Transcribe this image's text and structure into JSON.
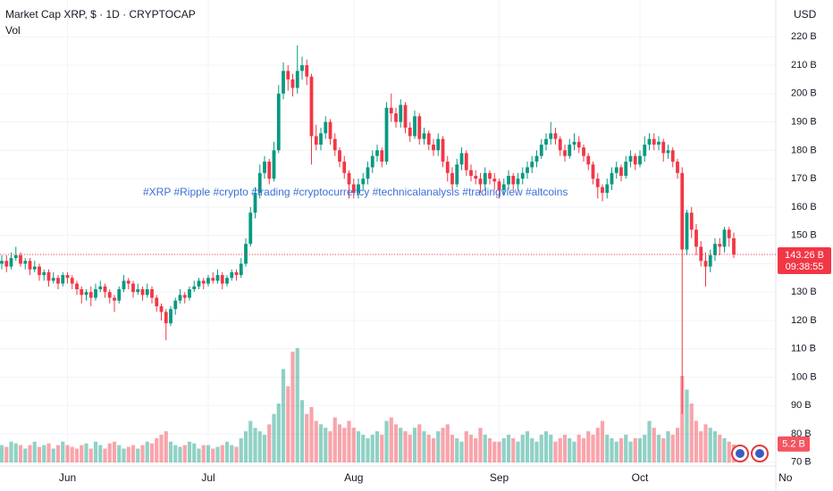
{
  "chart_data": {
    "type": "candlestick",
    "title": "Market Cap XRP, $ · 1D · CRYPTOCAP",
    "volume_label": "Vol",
    "currency": "USD",
    "annotation": "#XRP #Ripple #crypto #trading #cryptocurrency #technicalanalysis #tradingview #altcoins",
    "open": [
      140,
      141,
      139,
      142,
      143,
      140,
      141,
      138,
      139,
      136,
      137,
      134,
      135,
      133,
      136,
      135,
      133,
      131,
      129,
      130,
      128,
      131,
      132,
      130,
      128,
      127,
      131,
      134,
      133,
      130,
      131,
      129,
      131,
      128,
      125,
      123,
      119,
      124,
      127,
      129,
      128,
      131,
      132,
      134,
      133,
      135,
      134,
      136,
      133,
      135,
      137,
      136,
      140,
      147,
      158,
      165,
      172,
      176,
      170,
      180,
      200,
      208,
      205,
      202,
      208,
      210,
      206,
      185,
      182,
      186,
      190,
      184,
      180,
      176,
      172,
      168,
      165,
      168,
      170,
      174,
      178,
      180,
      176,
      195,
      193,
      190,
      196,
      188,
      185,
      192,
      184,
      186,
      182,
      180,
      184,
      176,
      172,
      168,
      175,
      179,
      173,
      171,
      170,
      168,
      172,
      170,
      169,
      166,
      168,
      171,
      168,
      170,
      172,
      174,
      176,
      178,
      182,
      184,
      186,
      184,
      180,
      178,
      182,
      183,
      181,
      178,
      175,
      170,
      167,
      165,
      168,
      172,
      174,
      171,
      176,
      178,
      175,
      178,
      182,
      184,
      182,
      183,
      179,
      180,
      176,
      172,
      145,
      158,
      152,
      146,
      141,
      139,
      143,
      147,
      146,
      152,
      149
    ],
    "high": [
      143,
      143,
      144,
      146,
      144,
      142,
      142,
      141,
      140,
      138,
      138,
      137,
      136,
      137,
      137,
      136,
      134,
      132,
      131,
      132,
      133,
      134,
      133,
      131,
      129,
      132,
      136,
      135,
      134,
      133,
      132,
      133,
      132,
      129,
      126,
      124,
      125,
      128,
      131,
      130,
      132,
      134,
      135,
      135,
      136,
      137,
      138,
      137,
      136,
      138,
      138,
      142,
      149,
      160,
      167,
      175,
      178,
      177,
      183,
      203,
      211,
      210,
      207,
      217,
      213,
      212,
      207,
      189,
      188,
      192,
      191,
      186,
      181,
      178,
      173,
      170,
      170,
      172,
      176,
      180,
      182,
      181,
      197,
      200,
      195,
      198,
      197,
      190,
      194,
      193,
      188,
      187,
      184,
      186,
      185,
      178,
      174,
      177,
      181,
      180,
      175,
      173,
      172,
      174,
      173,
      172,
      170,
      170,
      173,
      172,
      172,
      174,
      176,
      178,
      180,
      184,
      186,
      190,
      188,
      185,
      182,
      184,
      186,
      185,
      182,
      179,
      176,
      172,
      168,
      170,
      174,
      176,
      175,
      178,
      180,
      179,
      180,
      185,
      186,
      186,
      185,
      184,
      182,
      181,
      177,
      174,
      159,
      160,
      154,
      148,
      144,
      145,
      149,
      149,
      153,
      153,
      151
    ],
    "low": [
      138,
      137,
      138,
      141,
      139,
      138,
      136,
      137,
      134,
      134,
      132,
      133,
      131,
      132,
      133,
      131,
      129,
      126,
      127,
      125,
      127,
      130,
      128,
      126,
      123,
      126,
      130,
      131,
      128,
      129,
      127,
      128,
      126,
      123,
      120,
      113,
      118,
      122,
      126,
      126,
      127,
      130,
      131,
      131,
      132,
      133,
      133,
      131,
      132,
      134,
      134,
      135,
      139,
      146,
      156,
      163,
      170,
      168,
      169,
      179,
      198,
      201,
      199,
      200,
      205,
      203,
      175,
      180,
      180,
      184,
      182,
      178,
      174,
      170,
      163,
      163,
      163,
      166,
      168,
      172,
      176,
      174,
      175,
      190,
      188,
      188,
      186,
      183,
      184,
      182,
      182,
      180,
      178,
      178,
      174,
      169,
      166,
      167,
      173,
      171,
      169,
      168,
      165,
      166,
      168,
      166,
      163,
      164,
      166,
      166,
      166,
      168,
      170,
      172,
      174,
      177,
      180,
      182,
      182,
      178,
      176,
      177,
      180,
      179,
      176,
      173,
      168,
      163,
      162,
      163,
      166,
      170,
      169,
      170,
      174,
      173,
      174,
      176,
      180,
      180,
      180,
      176,
      177,
      174,
      170,
      87,
      143,
      149,
      143,
      139,
      132,
      137,
      141,
      143,
      144,
      146,
      142
    ],
    "close": [
      141,
      139,
      142,
      143,
      140,
      141,
      138,
      139,
      136,
      137,
      134,
      135,
      133,
      136,
      135,
      133,
      131,
      129,
      130,
      128,
      131,
      132,
      130,
      128,
      127,
      131,
      134,
      133,
      130,
      131,
      129,
      131,
      128,
      125,
      123,
      119,
      124,
      127,
      129,
      128,
      131,
      132,
      134,
      133,
      135,
      134,
      136,
      133,
      135,
      137,
      136,
      140,
      147,
      158,
      165,
      172,
      176,
      170,
      180,
      200,
      208,
      205,
      202,
      208,
      210,
      206,
      185,
      182,
      186,
      190,
      184,
      180,
      176,
      172,
      168,
      165,
      168,
      170,
      174,
      178,
      180,
      176,
      195,
      193,
      190,
      196,
      188,
      185,
      192,
      184,
      186,
      182,
      180,
      184,
      176,
      172,
      168,
      175,
      179,
      173,
      171,
      170,
      168,
      172,
      170,
      169,
      166,
      168,
      171,
      168,
      170,
      172,
      174,
      176,
      178,
      182,
      184,
      186,
      184,
      180,
      178,
      182,
      183,
      181,
      178,
      175,
      170,
      167,
      165,
      168,
      172,
      174,
      171,
      176,
      178,
      175,
      178,
      182,
      184,
      182,
      183,
      179,
      180,
      176,
      172,
      145,
      158,
      152,
      146,
      141,
      139,
      143,
      147,
      146,
      152,
      149,
      143.26
    ],
    "volume": [
      5,
      4.5,
      6,
      5.5,
      5,
      4,
      5,
      6,
      4.5,
      5,
      5.5,
      4,
      5,
      6,
      5,
      4.5,
      4,
      5,
      5.5,
      4,
      6,
      5,
      4,
      5.5,
      6,
      5,
      4,
      4.5,
      5,
      4,
      5,
      6,
      5.5,
      7,
      8,
      9,
      6,
      5,
      4.5,
      5,
      6,
      5.5,
      4,
      5,
      5,
      4,
      4.5,
      5,
      6,
      5,
      4.5,
      7,
      9,
      12,
      10,
      9,
      8,
      11,
      14,
      17,
      27,
      22,
      32,
      33,
      18,
      14,
      16,
      12,
      11,
      10,
      9,
      13,
      11,
      10,
      12,
      10,
      9,
      8,
      7,
      8,
      9,
      8,
      12,
      13,
      11,
      10,
      9,
      8,
      10,
      11,
      9,
      8,
      7,
      9,
      10,
      11,
      8,
      7,
      6,
      9,
      8,
      7,
      10,
      8,
      7,
      6,
      6,
      7,
      8,
      7,
      6,
      8,
      9,
      7,
      6,
      8,
      9,
      8,
      6,
      7,
      8,
      7,
      6,
      8,
      7,
      9,
      8,
      10,
      12,
      8,
      7,
      6,
      7,
      8,
      6,
      7,
      7,
      8,
      12,
      10,
      8,
      7,
      9,
      8,
      10,
      25,
      21,
      17,
      12,
      9,
      11,
      10,
      9,
      8,
      7,
      6,
      5.2
    ],
    "last_close_label": "143.26 B",
    "last_volume_label": "5.2 B",
    "countdown": "09:38:55",
    "up_color": "#089981",
    "down_color": "#f23645",
    "annotation_color": "#3d6fd8",
    "grid": true,
    "ylim": [
      63,
      233
    ],
    "yticks": [
      {
        "value": 70,
        "label": "70 B"
      },
      {
        "value": 80,
        "label": "80 B"
      },
      {
        "value": 90,
        "label": "90 B"
      },
      {
        "value": 100,
        "label": "100 B"
      },
      {
        "value": 110,
        "label": "110 B"
      },
      {
        "value": 120,
        "label": "120 B"
      },
      {
        "value": 130,
        "label": "130 B"
      },
      {
        "value": 140,
        "label": "140 B"
      },
      {
        "value": 150,
        "label": "150 B"
      },
      {
        "value": 160,
        "label": "160 B"
      },
      {
        "value": 170,
        "label": "170 B"
      },
      {
        "value": 180,
        "label": "180 B"
      },
      {
        "value": 190,
        "label": "190 B"
      },
      {
        "value": 200,
        "label": "200 B"
      },
      {
        "value": 210,
        "label": "210 B"
      },
      {
        "value": 220,
        "label": "220 B"
      }
    ],
    "xticks": [
      {
        "value": 14,
        "label": "Jun"
      },
      {
        "value": 44,
        "label": "Jul"
      },
      {
        "value": 75,
        "label": "Aug"
      },
      {
        "value": 106,
        "label": "Sep"
      },
      {
        "value": 136,
        "label": "Oct"
      },
      {
        "value": 167,
        "label": "No"
      }
    ]
  }
}
